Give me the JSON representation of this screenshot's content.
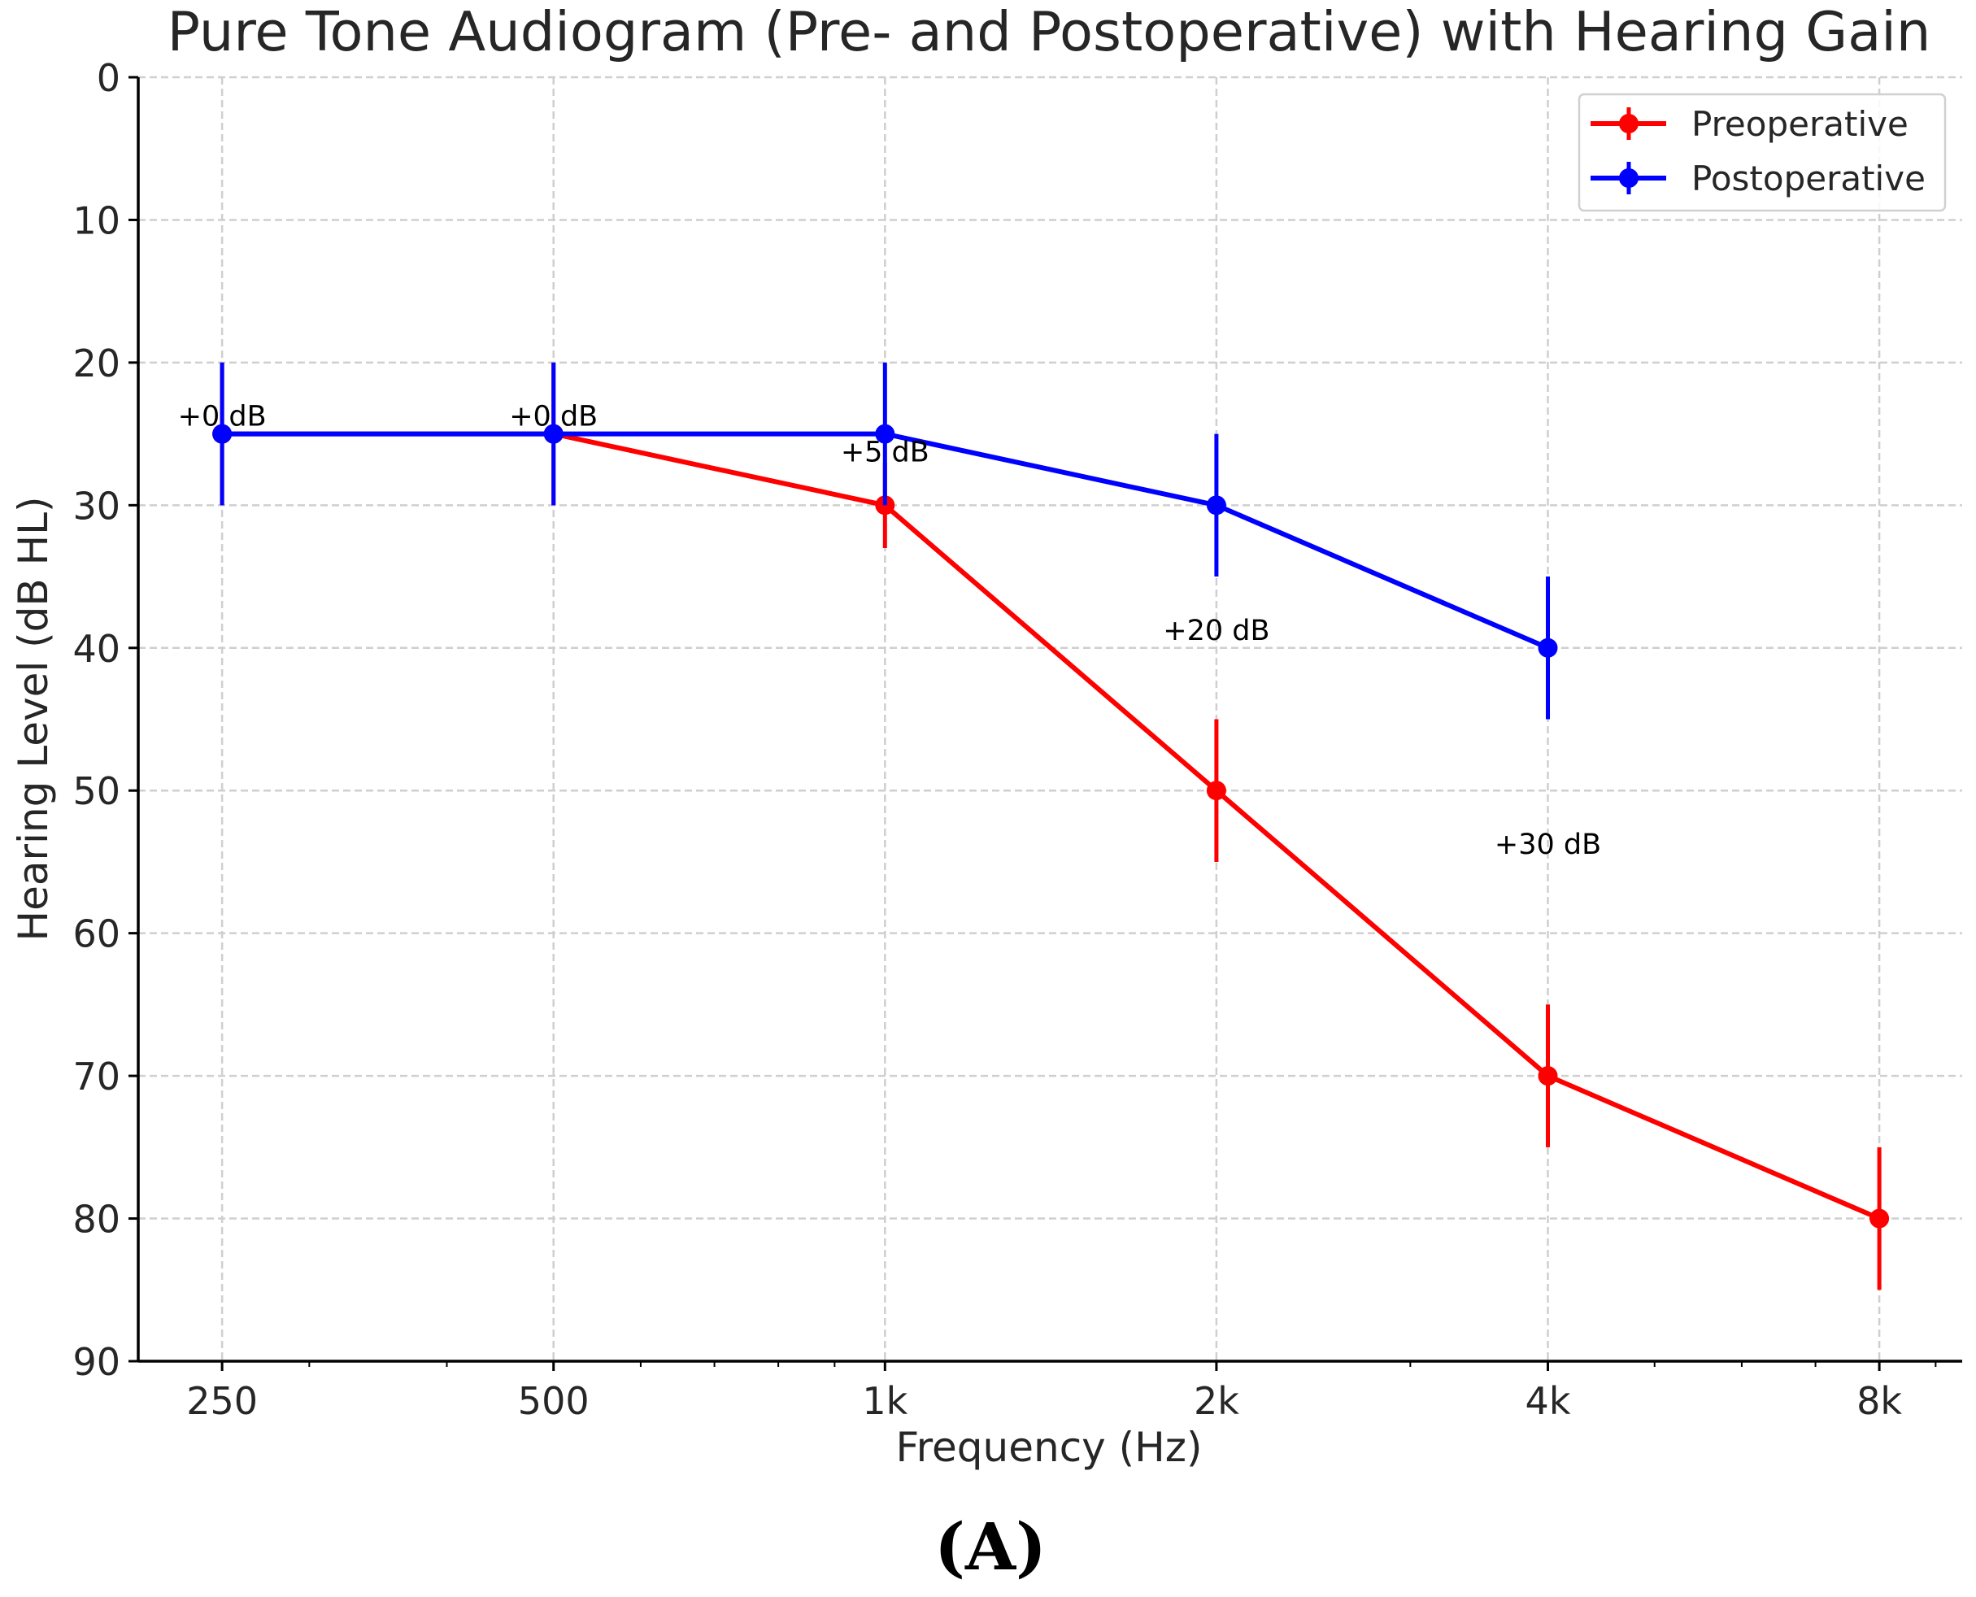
{
  "chart_data": {
    "type": "line",
    "title": "Pure Tone Audiogram (Pre- and Postoperative) with Hearing Gain",
    "xlabel": "Frequency (Hz)",
    "ylabel": "Hearing Level (dB HL)",
    "x": [
      250,
      500,
      1000,
      2000,
      4000,
      8000
    ],
    "x_tick_labels": [
      "250",
      "500",
      "1k",
      "2k",
      "4k",
      "8k"
    ],
    "x_scale": "log2",
    "y_ticks": [
      0,
      10,
      20,
      30,
      40,
      50,
      60,
      70,
      80,
      90
    ],
    "ylim": [
      90,
      0
    ],
    "y_inverted": true,
    "grid": true,
    "legend_position": "top-right",
    "series": [
      {
        "name": "Preoperative",
        "color": "#ff0000",
        "x": [
          250,
          500,
          1000,
          2000,
          4000,
          8000
        ],
        "values": [
          25,
          25,
          30,
          50,
          70,
          80
        ],
        "errors": [
          5,
          5,
          3,
          5,
          5,
          5
        ]
      },
      {
        "name": "Postoperative",
        "color": "#0000ff",
        "x": [
          250,
          500,
          1000,
          2000,
          4000
        ],
        "values": [
          25,
          25,
          25,
          30,
          40
        ],
        "errors": [
          5,
          5,
          5,
          5,
          5
        ]
      }
    ],
    "annotations": [
      {
        "x": 250,
        "y": 25,
        "text": "+0 dB"
      },
      {
        "x": 500,
        "y": 25,
        "text": "+0 dB"
      },
      {
        "x": 1000,
        "y": 27.5,
        "text": "+5 dB"
      },
      {
        "x": 2000,
        "y": 40,
        "text": "+20 dB"
      },
      {
        "x": 4000,
        "y": 55,
        "text": "+30 dB"
      }
    ]
  },
  "figure_label": "(A)"
}
